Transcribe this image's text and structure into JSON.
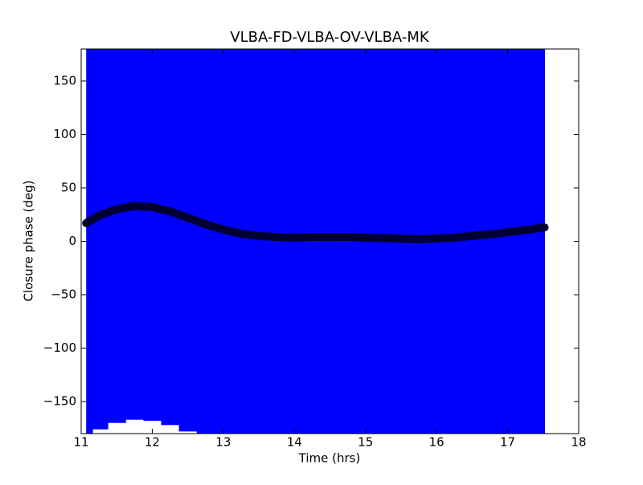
{
  "chart_data": {
    "type": "scatter",
    "title": "VLBA-FD-VLBA-OV-VLBA-MK",
    "x_label": "Time (hrs)",
    "y_label": "Closure phase (deg)",
    "x": [
      11.07,
      11.25,
      11.5,
      11.75,
      12,
      12.25,
      12.5,
      12.75,
      13,
      13.25,
      13.5,
      13.75,
      14,
      14.25,
      14.5,
      14.75,
      15,
      15.25,
      15.5,
      15.75,
      16,
      16.25,
      16.5,
      16.75,
      17,
      17.25,
      17.52
    ],
    "series": [
      {
        "color": "#000033",
        "error_color": "#0000ff",
        "values": [
          17,
          24,
          30,
          33,
          32,
          28,
          22,
          16,
          11,
          7,
          5,
          4,
          3.5,
          4,
          4,
          4,
          3.5,
          3,
          2.5,
          2,
          2.5,
          3.5,
          5,
          6.5,
          8.5,
          10.5,
          13
        ],
        "errors": [
          200,
          200,
          200,
          200,
          200,
          200,
          200,
          200,
          200,
          200,
          200,
          200,
          200,
          200,
          200,
          200,
          200,
          200,
          200,
          200,
          200,
          200,
          200,
          200,
          200,
          200,
          200
        ]
      }
    ],
    "xlim": [
      11,
      18
    ],
    "ylim": [
      -180,
      180
    ],
    "xticks": [
      11,
      12,
      13,
      14,
      15,
      16,
      17,
      18
    ],
    "yticks": [
      {
        "value": -150,
        "label": "−150"
      },
      {
        "value": -100,
        "label": "−100"
      },
      {
        "value": -50,
        "label": "−50"
      },
      0,
      50,
      100,
      150
    ]
  }
}
